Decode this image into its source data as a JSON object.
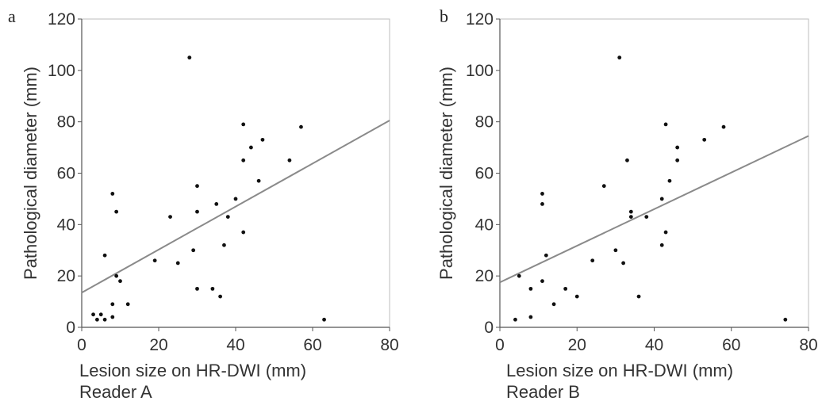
{
  "chart_data": [
    {
      "type": "scatter",
      "panel_label": "a",
      "ylabel": "Pathological diameter (mm)",
      "xlabel": "Lesion size on HR-DWI (mm)",
      "reader_label": "Reader A",
      "xlim": [
        0,
        80
      ],
      "ylim": [
        0,
        120
      ],
      "xticks": [
        "0",
        "20",
        "40",
        "60",
        "80"
      ],
      "yticks": [
        "0",
        "20",
        "40",
        "60",
        "80",
        "100",
        "120"
      ],
      "grid": false,
      "regression_line": {
        "x": [
          0,
          80
        ],
        "y": [
          13.5,
          80.5
        ]
      },
      "points": [
        {
          "x": 3,
          "y": 5
        },
        {
          "x": 4,
          "y": 3
        },
        {
          "x": 5,
          "y": 5
        },
        {
          "x": 6,
          "y": 3
        },
        {
          "x": 6,
          "y": 28
        },
        {
          "x": 8,
          "y": 4
        },
        {
          "x": 8,
          "y": 9
        },
        {
          "x": 8,
          "y": 52
        },
        {
          "x": 9,
          "y": 20
        },
        {
          "x": 9,
          "y": 45
        },
        {
          "x": 10,
          "y": 18
        },
        {
          "x": 12,
          "y": 9
        },
        {
          "x": 19,
          "y": 26
        },
        {
          "x": 23,
          "y": 43
        },
        {
          "x": 25,
          "y": 25
        },
        {
          "x": 28,
          "y": 105
        },
        {
          "x": 29,
          "y": 30
        },
        {
          "x": 30,
          "y": 55
        },
        {
          "x": 30,
          "y": 45
        },
        {
          "x": 30,
          "y": 15
        },
        {
          "x": 34,
          "y": 15
        },
        {
          "x": 35,
          "y": 48
        },
        {
          "x": 36,
          "y": 12
        },
        {
          "x": 37,
          "y": 32
        },
        {
          "x": 38,
          "y": 43
        },
        {
          "x": 40,
          "y": 50
        },
        {
          "x": 42,
          "y": 79
        },
        {
          "x": 42,
          "y": 65
        },
        {
          "x": 42,
          "y": 37
        },
        {
          "x": 44,
          "y": 70
        },
        {
          "x": 46,
          "y": 57
        },
        {
          "x": 47,
          "y": 73
        },
        {
          "x": 54,
          "y": 65
        },
        {
          "x": 57,
          "y": 78
        },
        {
          "x": 63,
          "y": 3
        }
      ]
    },
    {
      "type": "scatter",
      "panel_label": "b",
      "ylabel": "Pathological diameter (mm)",
      "xlabel": "Lesion size on HR-DWI (mm)",
      "reader_label": "Reader B",
      "xlim": [
        0,
        80
      ],
      "ylim": [
        0,
        120
      ],
      "xticks": [
        "0",
        "20",
        "40",
        "60",
        "80"
      ],
      "yticks": [
        "0",
        "20",
        "40",
        "60",
        "80",
        "100",
        "120"
      ],
      "grid": false,
      "regression_line": {
        "x": [
          0,
          80
        ],
        "y": [
          17.5,
          74.5
        ]
      },
      "points": [
        {
          "x": 4,
          "y": 3
        },
        {
          "x": 5,
          "y": 20
        },
        {
          "x": 8,
          "y": 4
        },
        {
          "x": 8,
          "y": 15
        },
        {
          "x": 11,
          "y": 52
        },
        {
          "x": 11,
          "y": 48
        },
        {
          "x": 11,
          "y": 18
        },
        {
          "x": 12,
          "y": 28
        },
        {
          "x": 14,
          "y": 9
        },
        {
          "x": 17,
          "y": 15
        },
        {
          "x": 20,
          "y": 12
        },
        {
          "x": 24,
          "y": 26
        },
        {
          "x": 27,
          "y": 55
        },
        {
          "x": 30,
          "y": 30
        },
        {
          "x": 31,
          "y": 105
        },
        {
          "x": 32,
          "y": 25
        },
        {
          "x": 33,
          "y": 65
        },
        {
          "x": 34,
          "y": 45
        },
        {
          "x": 34,
          "y": 43
        },
        {
          "x": 36,
          "y": 12
        },
        {
          "x": 38,
          "y": 43
        },
        {
          "x": 42,
          "y": 50
        },
        {
          "x": 42,
          "y": 32
        },
        {
          "x": 43,
          "y": 79
        },
        {
          "x": 43,
          "y": 37
        },
        {
          "x": 44,
          "y": 57
        },
        {
          "x": 46,
          "y": 70
        },
        {
          "x": 46,
          "y": 65
        },
        {
          "x": 53,
          "y": 73
        },
        {
          "x": 58,
          "y": 78
        },
        {
          "x": 74,
          "y": 3
        }
      ]
    }
  ]
}
